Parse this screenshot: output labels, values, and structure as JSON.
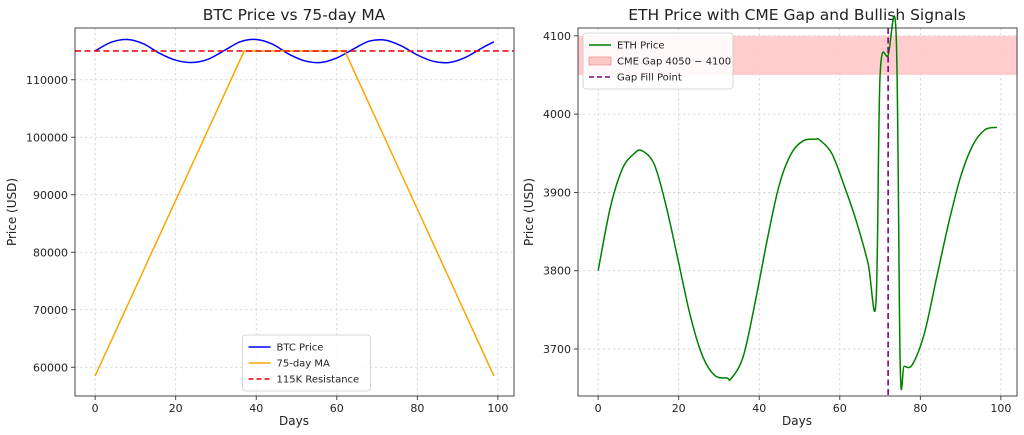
{
  "chart_data": [
    {
      "type": "line",
      "title": "BTC Price vs 75-day MA",
      "xlabel": "Days",
      "ylabel": "Price (USD)",
      "xlim": [
        -5,
        104
      ],
      "ylim": [
        55000,
        119000
      ],
      "xticks": [
        0,
        20,
        40,
        60,
        80,
        100
      ],
      "yticks": [
        60000,
        70000,
        80000,
        90000,
        100000,
        110000
      ],
      "grid": true,
      "legend_position": "bottom-center",
      "series": [
        {
          "name": "BTC Price",
          "color": "#0000ff",
          "style": "solid",
          "x": [
            0,
            4,
            8,
            12,
            16,
            20,
            24,
            28,
            32,
            36,
            40,
            44,
            48,
            52,
            56,
            60,
            64,
            68,
            72,
            76,
            80,
            84,
            88,
            92,
            96,
            99
          ],
          "y": [
            115000,
            116530,
            117000,
            116250,
            114600,
            113400,
            113000,
            113550,
            115050,
            116600,
            117000,
            116200,
            114500,
            113300,
            113000,
            113800,
            115300,
            116700,
            116900,
            115900,
            114300,
            113200,
            113000,
            113900,
            115500,
            116600
          ]
        },
        {
          "name": "75-day MA",
          "color": "#ffa500",
          "style": "solid",
          "x": [
            0,
            37,
            62,
            99
          ],
          "y": [
            58500,
            115000,
            115000,
            58500
          ]
        },
        {
          "name": "115K Resistance",
          "color": "#e8000b",
          "style": "dashed",
          "x": [
            -5,
            104
          ],
          "y": [
            115000,
            115000
          ]
        }
      ]
    },
    {
      "type": "line",
      "title": "ETH Price with CME Gap and Bullish Signals",
      "xlabel": "Days",
      "ylabel": "Price (USD)",
      "xlim": [
        -5,
        104
      ],
      "ylim": [
        3640,
        4110
      ],
      "xticks": [
        0,
        20,
        40,
        60,
        80,
        100
      ],
      "yticks": [
        3700,
        3800,
        3900,
        4000,
        4100
      ],
      "grid": true,
      "legend_position": "top-left",
      "band": {
        "name": "CME Gap $4050-$4100$",
        "legend_label": "CME Gap 4050 − 4100",
        "from": 4050,
        "to": 4100,
        "color": "#ffc8c8"
      },
      "vline": {
        "name": "Gap Fill Point",
        "x": 72,
        "color": "#800080",
        "style": "dashed"
      },
      "series": [
        {
          "name": "ETH Price",
          "color": "#008000",
          "style": "solid",
          "x": [
            0,
            3,
            6,
            9,
            11,
            14,
            17,
            20,
            23,
            26,
            29,
            32,
            33,
            36,
            39,
            42,
            45,
            48,
            51,
            54,
            55,
            58,
            61,
            64,
            67,
            69,
            70,
            72,
            74,
            75,
            76,
            78,
            81,
            84,
            87,
            90,
            93,
            96,
            99
          ],
          "y": [
            3800,
            3880,
            3930,
            3950,
            3953,
            3935,
            3880,
            3810,
            3740,
            3690,
            3666,
            3663,
            3662,
            3690,
            3760,
            3840,
            3910,
            3950,
            3966,
            3968,
            3967,
            3950,
            3910,
            3865,
            3810,
            3760,
            4050,
            4075,
            4100,
            3680,
            3678,
            3680,
            3720,
            3790,
            3860,
            3920,
            3960,
            3980,
            3983
          ]
        }
      ]
    }
  ]
}
